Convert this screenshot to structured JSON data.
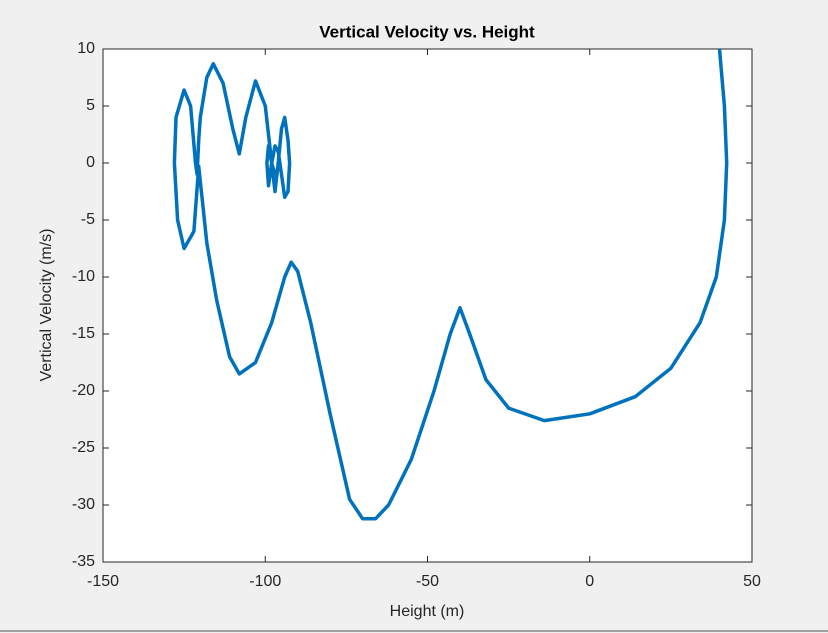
{
  "chart_data": {
    "type": "line",
    "title": "Vertical Velocity vs. Height",
    "x_label": "Height (m)",
    "y_label": "Vertical Velocity (m/s)",
    "x": [
      40,
      41.5,
      42.2,
      41.5,
      39,
      34,
      25,
      14,
      0,
      -14,
      -25,
      -32,
      -37,
      -40,
      -43,
      -48,
      -55,
      -62,
      -66,
      -70,
      -74,
      -80,
      -86,
      -90,
      -92,
      -94,
      -98,
      -103,
      -108,
      -111,
      -115,
      -118,
      -119.5,
      -120.5,
      -122,
      -125,
      -127,
      -128,
      -127.5,
      -125,
      -123,
      -121.5,
      -121,
      -120.5,
      -120,
      -118,
      -116,
      -113,
      -110,
      -108,
      -106,
      -103,
      -100,
      -98,
      -97,
      -96,
      -95,
      -94,
      -93,
      -92.5,
      -93,
      -94,
      -95,
      -96,
      -97,
      -98,
      -99,
      -99.5,
      -99,
      -98,
      -97
    ],
    "series": [
      {
        "name": "Vertical Velocity",
        "color": "#0072bd",
        "values": [
          10,
          5,
          0,
          -5,
          -10,
          -14,
          -18,
          -20.5,
          -22,
          -22.6,
          -21.5,
          -19,
          -15,
          -12.7,
          -15,
          -20,
          -26,
          -30,
          -31.2,
          -31.2,
          -29.5,
          -22,
          -14,
          -9.5,
          -8.7,
          -10,
          -14,
          -17.5,
          -18.5,
          -17,
          -12,
          -7,
          -3,
          -0.3,
          -6,
          -7.5,
          -5,
          0,
          4,
          6.4,
          5,
          0,
          -1,
          2,
          4,
          7.5,
          8.7,
          7,
          3,
          0.8,
          4,
          7.2,
          5,
          0,
          -2.5,
          0,
          3,
          4,
          2,
          0,
          -2.5,
          -3,
          -1,
          1,
          1.5,
          0,
          -2,
          0,
          1.5,
          0,
          -1
        ]
      }
    ],
    "xlim": [
      -150,
      50
    ],
    "xticks": [
      -150,
      -100,
      -50,
      0,
      50
    ],
    "ylim": [
      -35,
      10
    ],
    "yticks": [
      -35,
      -30,
      -25,
      -20,
      -15,
      -10,
      -5,
      0,
      5,
      10
    ]
  }
}
